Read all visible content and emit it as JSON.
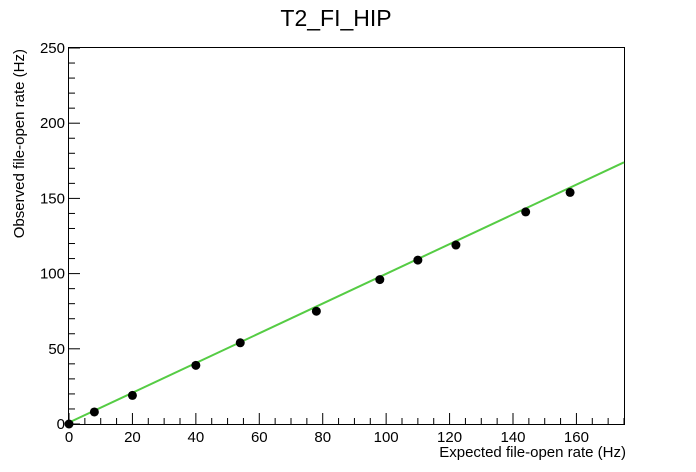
{
  "chart_data": {
    "type": "scatter",
    "title": "T2_FI_HIP",
    "xlabel": "Expected file-open rate (Hz)",
    "ylabel": "Observed file-open rate (Hz)",
    "xlim": [
      0,
      175
    ],
    "ylim": [
      0,
      250
    ],
    "x_ticks": [
      "0",
      "20",
      "40",
      "60",
      "80",
      "100",
      "120",
      "140",
      "160"
    ],
    "y_ticks": [
      "0",
      "50",
      "100",
      "150",
      "200",
      "250"
    ],
    "grid": false,
    "series": [
      {
        "type": "scatter",
        "marker": "circle",
        "color": "#000000",
        "points": [
          {
            "x": 0,
            "y": 0
          },
          {
            "x": 8,
            "y": 8
          },
          {
            "x": 20,
            "y": 19
          },
          {
            "x": 40,
            "y": 39
          },
          {
            "x": 54,
            "y": 54
          },
          {
            "x": 78,
            "y": 75
          },
          {
            "x": 98,
            "y": 96
          },
          {
            "x": 110,
            "y": 109
          },
          {
            "x": 122,
            "y": 119
          },
          {
            "x": 144,
            "y": 141
          },
          {
            "x": 158,
            "y": 154
          }
        ]
      },
      {
        "type": "line",
        "color": "#55cc44",
        "points": [
          {
            "x": 0,
            "y": 1
          },
          {
            "x": 175,
            "y": 174
          }
        ]
      }
    ]
  }
}
